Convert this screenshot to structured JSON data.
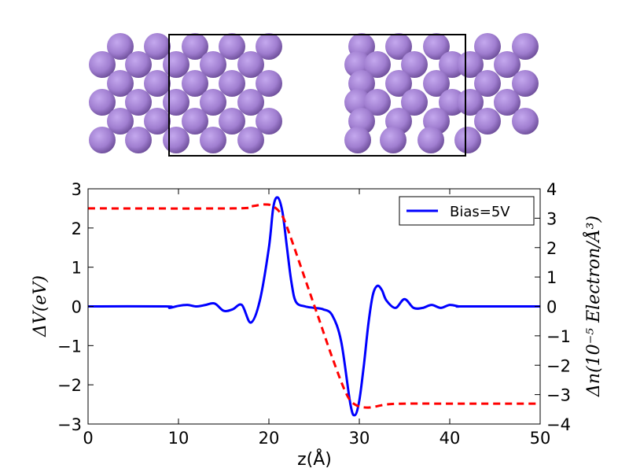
{
  "structure_panel": {
    "atom_color": "#a07ed0",
    "atom_shade_color": "#6a4b96",
    "cell_box": "unit cell outline"
  },
  "chart_data": {
    "type": "line",
    "xlabel": "z(Å)",
    "ylabel_left": "ΔV(eV)",
    "ylabel_right": "Δn(10⁻⁵ Electron/Å³)",
    "xlim": [
      0,
      50
    ],
    "ylim_left": [
      -3,
      3
    ],
    "ylim_right": [
      -4,
      4
    ],
    "x_ticks": [
      "0",
      "10",
      "20",
      "30",
      "40",
      "50"
    ],
    "y_ticks_left": [
      "−3",
      "−2",
      "−1",
      "0",
      "1",
      "2",
      "3"
    ],
    "y_ticks_right": [
      "−4",
      "−3",
      "−2",
      "−1",
      "0",
      "1",
      "2",
      "3",
      "4"
    ],
    "legend_position": "top-right",
    "grid": false,
    "series": [
      {
        "name": "Bias=5V",
        "axis": "right",
        "color": "#0000ff",
        "style": "solid",
        "points": [
          [
            0,
            0
          ],
          [
            8.6,
            0
          ],
          [
            9.0,
            -0.05
          ],
          [
            10.0,
            0.02
          ],
          [
            11.0,
            0.05
          ],
          [
            12.0,
            0.0
          ],
          [
            13.0,
            0.05
          ],
          [
            14.0,
            0.1
          ],
          [
            15.0,
            -0.15
          ],
          [
            16.0,
            -0.1
          ],
          [
            17.0,
            0.05
          ],
          [
            18.0,
            -0.55
          ],
          [
            19.0,
            0.2
          ],
          [
            20.0,
            2.0
          ],
          [
            20.5,
            3.4
          ],
          [
            21.0,
            3.7
          ],
          [
            21.5,
            3.2
          ],
          [
            22.0,
            2.0
          ],
          [
            22.5,
            0.8
          ],
          [
            23.0,
            0.15
          ],
          [
            24.0,
            0.0
          ],
          [
            25.0,
            -0.05
          ],
          [
            26.0,
            -0.1
          ],
          [
            27.0,
            -0.3
          ],
          [
            28.0,
            -1.2
          ],
          [
            29.0,
            -3.3
          ],
          [
            29.5,
            -3.7
          ],
          [
            30.0,
            -3.2
          ],
          [
            30.5,
            -2.0
          ],
          [
            31.0,
            -0.6
          ],
          [
            31.5,
            0.4
          ],
          [
            32.0,
            0.7
          ],
          [
            32.5,
            0.55
          ],
          [
            33.0,
            0.2
          ],
          [
            34.0,
            -0.05
          ],
          [
            35.0,
            0.25
          ],
          [
            36.0,
            -0.05
          ],
          [
            37.0,
            -0.05
          ],
          [
            38.0,
            0.05
          ],
          [
            39.0,
            -0.05
          ],
          [
            40.0,
            0.05
          ],
          [
            41.0,
            0.0
          ],
          [
            41.5,
            0.0
          ],
          [
            50,
            0
          ]
        ]
      },
      {
        "axis": "left",
        "color": "#ff0000",
        "style": "dashed",
        "points": [
          [
            0,
            2.5
          ],
          [
            16.0,
            2.5
          ],
          [
            18.0,
            2.55
          ],
          [
            19.5,
            2.6
          ],
          [
            20.5,
            2.55
          ],
          [
            21.5,
            2.3
          ],
          [
            22.5,
            1.7
          ],
          [
            24.0,
            0.7
          ],
          [
            25.5,
            -0.3
          ],
          [
            27.0,
            -1.3
          ],
          [
            28.5,
            -2.2
          ],
          [
            29.5,
            -2.5
          ],
          [
            31.0,
            -2.58
          ],
          [
            33.0,
            -2.5
          ],
          [
            35.0,
            -2.48
          ],
          [
            40.0,
            -2.48
          ],
          [
            50,
            -2.48
          ]
        ]
      }
    ]
  }
}
